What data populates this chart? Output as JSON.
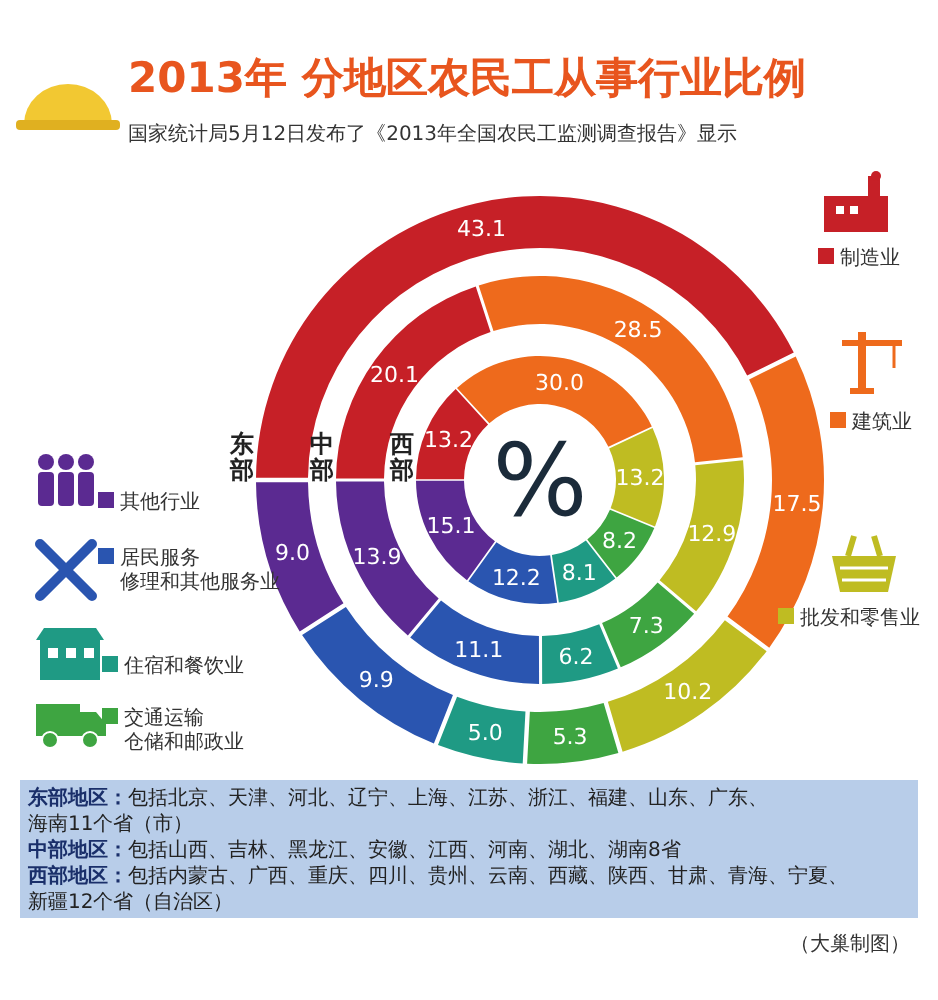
{
  "chart_data": {
    "type": "donut",
    "title": "2013年 分地区农民工从事行业比例",
    "subtitle": "国家统计局5月12日发布了《2013年全国农民工监测调查报告》显示",
    "categories": [
      "制造业",
      "建筑业",
      "批发和零售业",
      "交通运输仓储和邮政业",
      "住宿和餐饮业",
      "居民服务修理和其他服务业",
      "其他行业"
    ],
    "legend": "left",
    "colors": [
      "#c62027",
      "#ee6a1c",
      "#bfbc22",
      "#3ea541",
      "#1f9a84",
      "#2a55b0",
      "#5b2a91"
    ],
    "series": [
      {
        "name": "东部",
        "values": [
          43.1,
          17.5,
          10.2,
          5.3,
          5.0,
          9.9,
          9.0
        ],
        "value_labels": [
          "43.1",
          "17.5",
          "10.2",
          "5.3",
          "5.0",
          "9.9",
          "9.0"
        ]
      },
      {
        "name": "中部",
        "values": [
          20.1,
          28.5,
          12.9,
          7.3,
          6.2,
          11.1,
          13.9
        ],
        "value_labels": [
          "20.1",
          "28.5",
          "12.9",
          "7.3",
          "6.2",
          "11.1",
          "13.9"
        ]
      },
      {
        "name": "西部",
        "values": [
          13.2,
          30.0,
          13.2,
          8.2,
          8.1,
          12.2,
          15.1
        ],
        "value_labels": [
          "13.2",
          "30.0",
          "13.2",
          "8.2",
          "8.1",
          "12.2",
          "15.1"
        ]
      }
    ],
    "annotations": [
      "%",
      "东部地区：包括北京、天津、河北、辽宁、上海、江苏、浙江、福建、山东、广东、海南11个省（市）",
      "中部地区：包括山西、吉林、黑龙江、安徽、江西、河南、湖北、湖南8省",
      "西部地区：包括内蒙古、广西、重庆、四川、贵州、云南、西藏、陕西、甘肃、青海、宁夏、新疆12个省（自治区）",
      "（大巢制图）"
    ]
  }
}
